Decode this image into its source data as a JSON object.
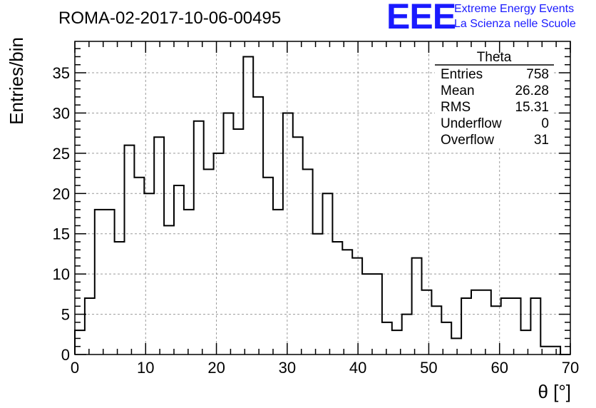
{
  "chart_data": {
    "type": "histogram",
    "title": "ROMA-02-2017-10-06-00495",
    "xlabel": "θ [°]",
    "ylabel": "Entries/bin",
    "xlim": [
      0,
      70
    ],
    "ylim": [
      0,
      38.9
    ],
    "x_ticks": [
      0,
      10,
      20,
      30,
      40,
      50,
      60,
      70
    ],
    "y_ticks": [
      0,
      5,
      10,
      15,
      20,
      25,
      30,
      35
    ],
    "grid": true,
    "bin_width": 1.4,
    "bin_start": 0,
    "values": [
      3,
      7,
      18,
      18,
      14,
      26,
      22,
      20,
      27,
      16,
      21,
      18,
      29,
      23,
      25,
      30,
      28,
      37,
      32,
      22,
      18,
      30,
      27,
      23,
      15,
      20,
      14,
      13,
      12,
      10,
      10,
      4,
      3,
      5,
      12,
      8,
      6,
      4,
      2,
      7,
      8,
      8,
      6,
      7,
      7,
      3,
      7,
      1,
      1,
      0
    ],
    "stats": {
      "title": "Theta",
      "rows": [
        {
          "label": "Entries",
          "value": "758"
        },
        {
          "label": "Mean",
          "value": "26.28"
        },
        {
          "label": "RMS",
          "value": "15.31"
        },
        {
          "label": "Underflow",
          "value": "0"
        },
        {
          "label": "Overflow",
          "value": "31"
        }
      ]
    }
  },
  "logo": {
    "mark": "EEE",
    "line1": "Extreme Energy Events",
    "line2": "La Scienza nelle Scuole"
  },
  "colors": {
    "histogram": "#000000",
    "grid": "#9a9a9a",
    "logo": "#1a1aff"
  }
}
